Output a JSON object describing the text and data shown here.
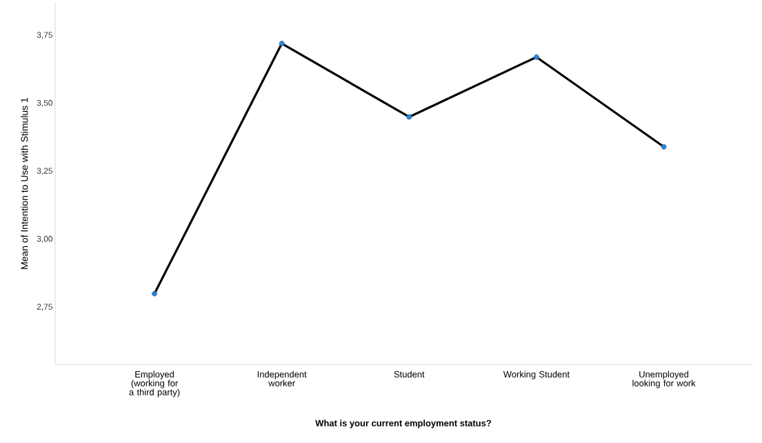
{
  "chart_data": {
    "type": "line",
    "xlabel": "What is your current employment status?",
    "ylabel": "Mean of Intention to Use with Stimulus 1",
    "categories": [
      "Employed (working for a third party)",
      "Independent worker",
      "Student",
      "Working Student",
      "Unemployed looking for work"
    ],
    "values": [
      2.8,
      3.72,
      3.45,
      3.67,
      3.34
    ],
    "color": "#000000",
    "colors": [
      "#1e88e5",
      "#1e88e5",
      "#1e88e5",
      "#1e88e5",
      "#1e88e5"
    ],
    "marker": "circle",
    "line_style": "solid",
    "grid": false,
    "ylim": [
      2.54,
      3.87
    ],
    "yticks": [
      {
        "value": 2.75,
        "label": "2,75"
      },
      {
        "value": 3.0,
        "label": "3,00"
      },
      {
        "value": 3.25,
        "label": "3,25"
      },
      {
        "value": 3.5,
        "label": "3,50"
      },
      {
        "value": 3.75,
        "label": "3,75"
      }
    ]
  }
}
